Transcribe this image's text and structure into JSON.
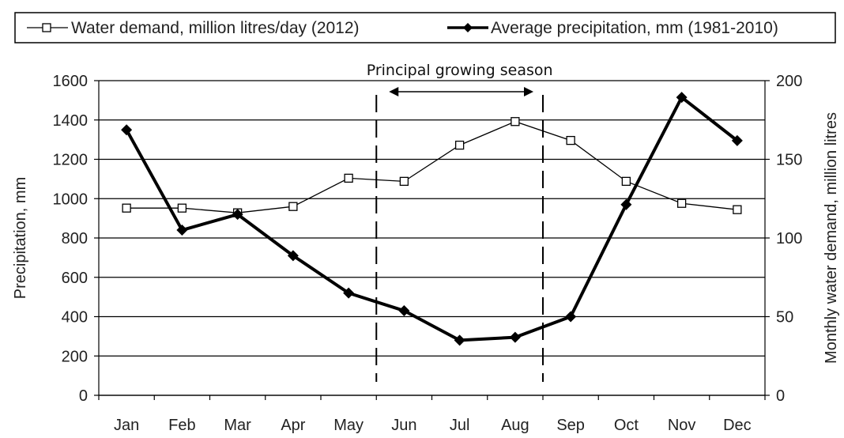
{
  "chart_data": {
    "type": "line",
    "categories": [
      "Jan",
      "Feb",
      "Mar",
      "Apr",
      "May",
      "Jun",
      "Jul",
      "Aug",
      "Sep",
      "Oct",
      "Nov",
      "Dec"
    ],
    "series": [
      {
        "name": "Water demand, million litres/day (2012)",
        "axis": "right",
        "marker": "open-square",
        "color": "#000000",
        "values": [
          119,
          119,
          116,
          120,
          138,
          136,
          159,
          174,
          162,
          136,
          122,
          118
        ]
      },
      {
        "name": "Average precipitation, mm (1981-2010)",
        "axis": "left",
        "marker": "filled-diamond",
        "color": "#000000",
        "values": [
          1350,
          840,
          920,
          710,
          520,
          430,
          280,
          295,
          400,
          970,
          1515,
          1295
        ]
      }
    ],
    "ylabel": "Precipitation, mm",
    "ylim": [
      0,
      1600
    ],
    "yticks": [
      "0",
      "200",
      "400",
      "600",
      "800",
      "1000",
      "1200",
      "1400",
      "1600"
    ],
    "y2label": "Monthly water demand, million litres",
    "y2lim": [
      0,
      200
    ],
    "y2ticks": [
      "0",
      "50",
      "100",
      "150",
      "200"
    ],
    "grid": true,
    "legend_position": "top",
    "annotation": {
      "text": "Principal growing season",
      "from": "May",
      "to": "Sep"
    }
  }
}
